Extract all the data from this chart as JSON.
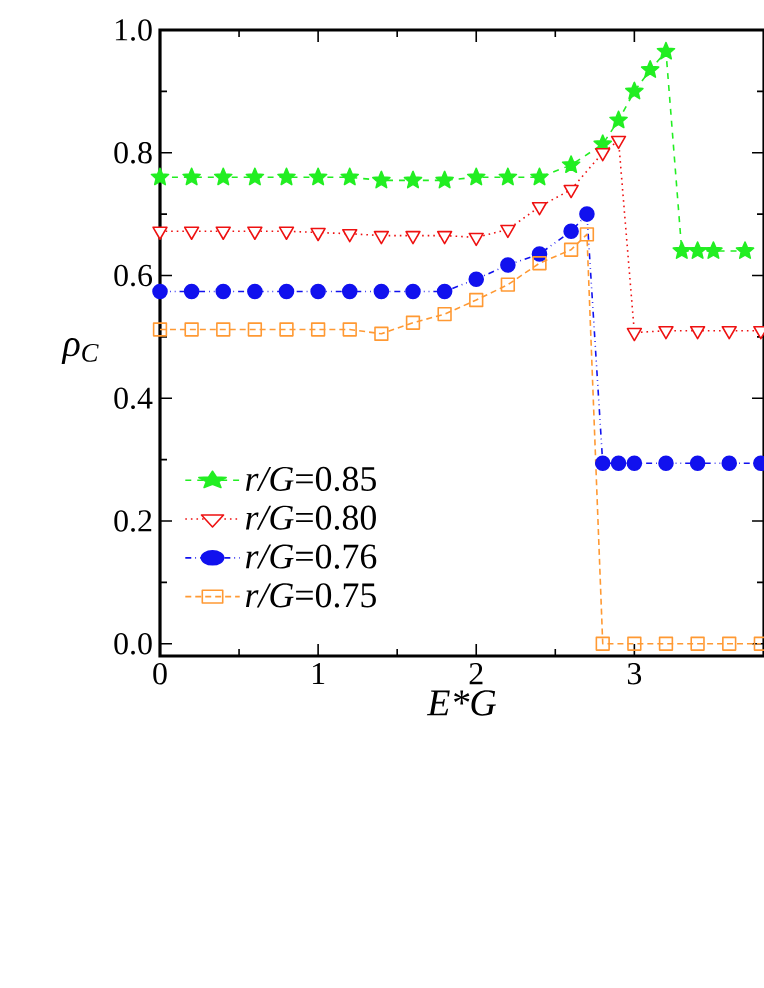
{
  "chart_data": {
    "type": "line",
    "xlabel": "E*G",
    "ylabel": "ρ$_{C}$",
    "xlim": [
      0,
      3.82
    ],
    "ylim": [
      -0.02,
      1.0
    ],
    "xticks": [
      0,
      1,
      2,
      3
    ],
    "yticks": [
      {
        "value": 0,
        "label": "0.0"
      },
      {
        "value": 0.2,
        "label": "0.2"
      },
      {
        "value": 0.4,
        "label": "0.4"
      },
      {
        "value": 0.6,
        "label": "0.6"
      },
      {
        "value": 0.8,
        "label": "0.8"
      },
      {
        "value": 1.0,
        "label": "1.0"
      }
    ],
    "legend": "bottom left",
    "grid": false,
    "series": [
      {
        "name": "*r/G*=0.85",
        "color": "#22ee22",
        "line_style": "dashed",
        "marker": "star",
        "x": [
          0,
          0.2,
          0.4,
          0.6,
          0.8,
          1.0,
          1.2,
          1.4,
          1.6,
          1.8,
          2.0,
          2.2,
          2.4,
          2.6,
          2.8,
          2.9,
          3.0,
          3.1,
          3.2,
          3.3,
          3.4,
          3.5,
          3.7
        ],
        "values": [
          0.76,
          0.76,
          0.76,
          0.76,
          0.76,
          0.76,
          0.76,
          0.755,
          0.755,
          0.755,
          0.76,
          0.76,
          0.76,
          0.78,
          0.814,
          0.853,
          0.9,
          0.935,
          0.965,
          0.64,
          0.64,
          0.64,
          0.64
        ]
      },
      {
        "name": "*r/G*=0.80",
        "color": "#ee1111",
        "line_style": "dotted",
        "marker": "triangle",
        "x": [
          0,
          0.2,
          0.4,
          0.6,
          0.8,
          1.0,
          1.2,
          1.4,
          1.6,
          1.8,
          2.0,
          2.2,
          2.4,
          2.6,
          2.8,
          2.9,
          3.0,
          3.2,
          3.4,
          3.6,
          3.8
        ],
        "values": [
          0.672,
          0.672,
          0.672,
          0.672,
          0.672,
          0.67,
          0.668,
          0.665,
          0.665,
          0.665,
          0.662,
          0.675,
          0.712,
          0.74,
          0.8,
          0.82,
          0.507,
          0.51,
          0.51,
          0.51,
          0.51
        ]
      },
      {
        "name": "*r/G*=0.76",
        "color": "#1111ee",
        "line_style": "dashdotdotted",
        "marker": "circle",
        "x": [
          0,
          0.2,
          0.4,
          0.6,
          0.8,
          1.0,
          1.2,
          1.4,
          1.6,
          1.8,
          2.0,
          2.2,
          2.4,
          2.6,
          2.7,
          2.8,
          2.9,
          3.0,
          3.2,
          3.4,
          3.6,
          3.8
        ],
        "values": [
          0.574,
          0.574,
          0.574,
          0.574,
          0.574,
          0.574,
          0.574,
          0.574,
          0.574,
          0.574,
          0.594,
          0.617,
          0.635,
          0.672,
          0.7,
          0.294,
          0.294,
          0.294,
          0.294,
          0.294,
          0.294,
          0.294
        ]
      },
      {
        "name": "*r/G*=0.75",
        "color": "#ff9933",
        "line_style": "densely dashed",
        "marker": "square",
        "x": [
          0,
          0.2,
          0.4,
          0.6,
          0.8,
          1.0,
          1.2,
          1.4,
          1.6,
          1.8,
          2.0,
          2.2,
          2.4,
          2.6,
          2.7,
          2.8,
          3.0,
          3.2,
          3.4,
          3.6,
          3.8
        ],
        "values": [
          0.512,
          0.512,
          0.512,
          0.512,
          0.512,
          0.512,
          0.512,
          0.505,
          0.523,
          0.537,
          0.56,
          0.585,
          0.62,
          0.642,
          0.667,
          0.0,
          0.0,
          0.0,
          0.0,
          0.0,
          0.0
        ]
      }
    ]
  }
}
